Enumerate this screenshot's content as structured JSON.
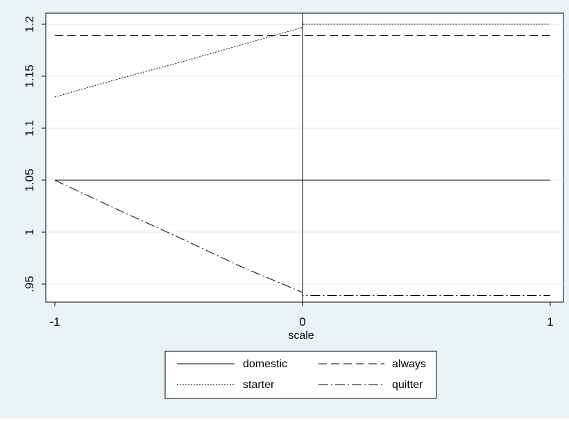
{
  "chart_data": {
    "type": "line",
    "title": "",
    "xlabel": "scale",
    "ylabel": "",
    "xlim": [
      -1,
      1
    ],
    "ylim": [
      0.94,
      1.205
    ],
    "x_ticks": [
      -1,
      0,
      1
    ],
    "x_tick_labels": [
      "-1",
      "0",
      "1"
    ],
    "y_ticks": [
      0.95,
      1,
      1.05,
      1.1,
      1.15,
      1.2
    ],
    "y_tick_labels": [
      ".95",
      "1",
      "1.05",
      "1.1",
      "1.15",
      "1.2"
    ],
    "grid": true,
    "reference_line_x": 0,
    "legend_position": "bottom",
    "series": [
      {
        "name": "domestic",
        "style": "solid",
        "x": [
          -1,
          0,
          1
        ],
        "y": [
          1.05,
          1.05,
          1.05
        ]
      },
      {
        "name": "always",
        "style": "dashed",
        "x": [
          -1,
          0,
          1
        ],
        "y": [
          1.189,
          1.189,
          1.189
        ]
      },
      {
        "name": "starter",
        "style": "dotted",
        "x": [
          -1,
          -0.75,
          -0.5,
          -0.25,
          0,
          0.0001,
          1
        ],
        "y": [
          1.13,
          1.147,
          1.163,
          1.18,
          1.197,
          1.2,
          1.2
        ]
      },
      {
        "name": "quitter",
        "style": "dash-dot",
        "x": [
          -1,
          -0.75,
          -0.5,
          -0.25,
          0,
          0.0001,
          1
        ],
        "y": [
          1.05,
          1.022,
          0.995,
          0.967,
          0.942,
          0.939,
          0.939
        ]
      }
    ]
  }
}
